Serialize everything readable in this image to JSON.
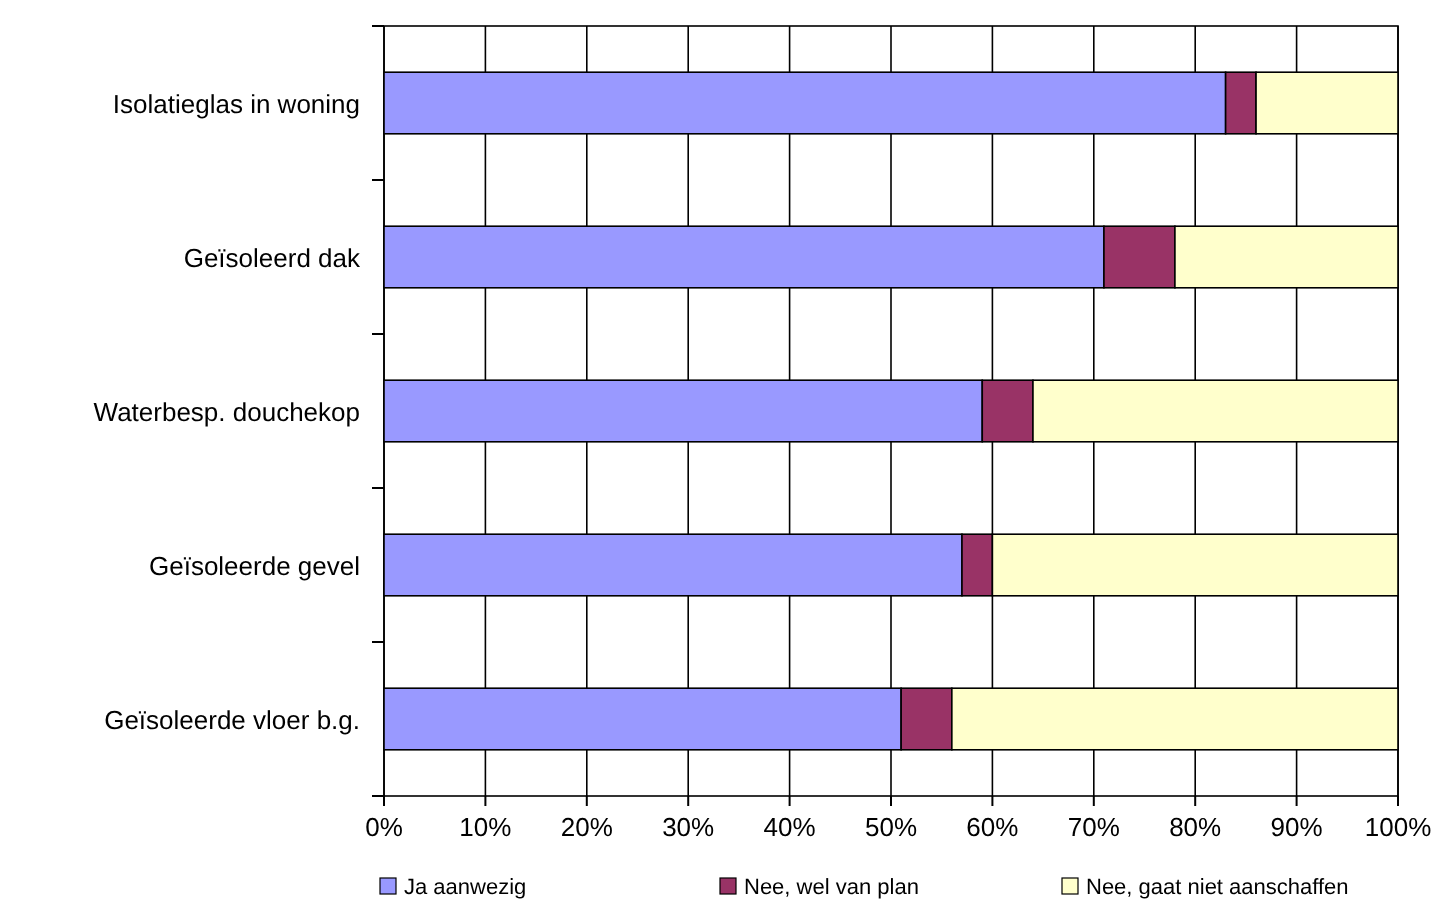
{
  "chart_data": {
    "type": "bar",
    "orientation": "horizontal",
    "stacked": true,
    "categories": [
      "Isolatieglas in woning",
      "Geïsoleerd dak",
      "Waterbesp. douchekop",
      "Geïsoleerde gevel",
      "Geïsoleerde vloer b.g."
    ],
    "series": [
      {
        "name": "Ja aanwezig",
        "color": "#9999ff",
        "values": [
          83,
          71,
          59,
          57,
          51
        ]
      },
      {
        "name": "Nee, wel van plan",
        "color": "#993366",
        "values": [
          3,
          7,
          5,
          3,
          5
        ]
      },
      {
        "name": "Nee, gaat niet aanschaffen",
        "color": "#ffffcc",
        "values": [
          14,
          22,
          36,
          40,
          44
        ]
      }
    ],
    "xlim": [
      0,
      100
    ],
    "xticks": [
      {
        "value": 0,
        "label": "0%"
      },
      {
        "value": 10,
        "label": "10%"
      },
      {
        "value": 20,
        "label": "20%"
      },
      {
        "value": 30,
        "label": "30%"
      },
      {
        "value": 40,
        "label": "40%"
      },
      {
        "value": 50,
        "label": "50%"
      },
      {
        "value": 60,
        "label": "60%"
      },
      {
        "value": 70,
        "label": "70%"
      },
      {
        "value": 80,
        "label": "80%"
      },
      {
        "value": 90,
        "label": "90%"
      },
      {
        "value": 100,
        "label": "100%"
      }
    ],
    "grid": "x",
    "legend": "bottom"
  }
}
